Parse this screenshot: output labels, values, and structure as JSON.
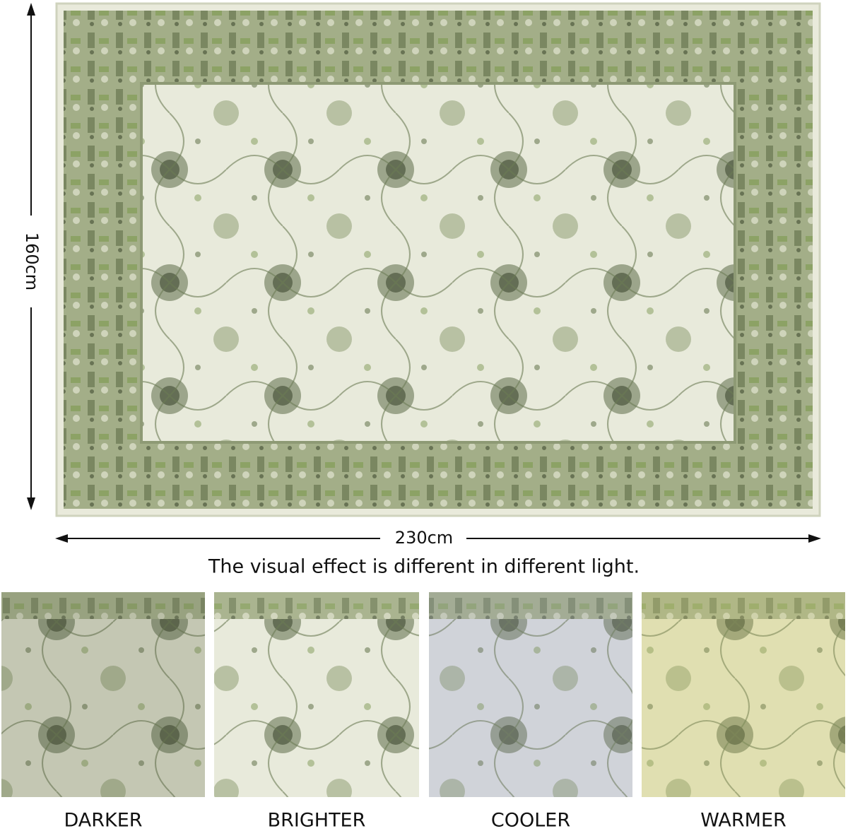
{
  "dimensions": {
    "height": "160cm",
    "width": "230cm"
  },
  "caption": "The visual effect is different in different light.",
  "variants": [
    "DARKER",
    "BRIGHTER",
    "COOLER",
    "WARMER"
  ]
}
